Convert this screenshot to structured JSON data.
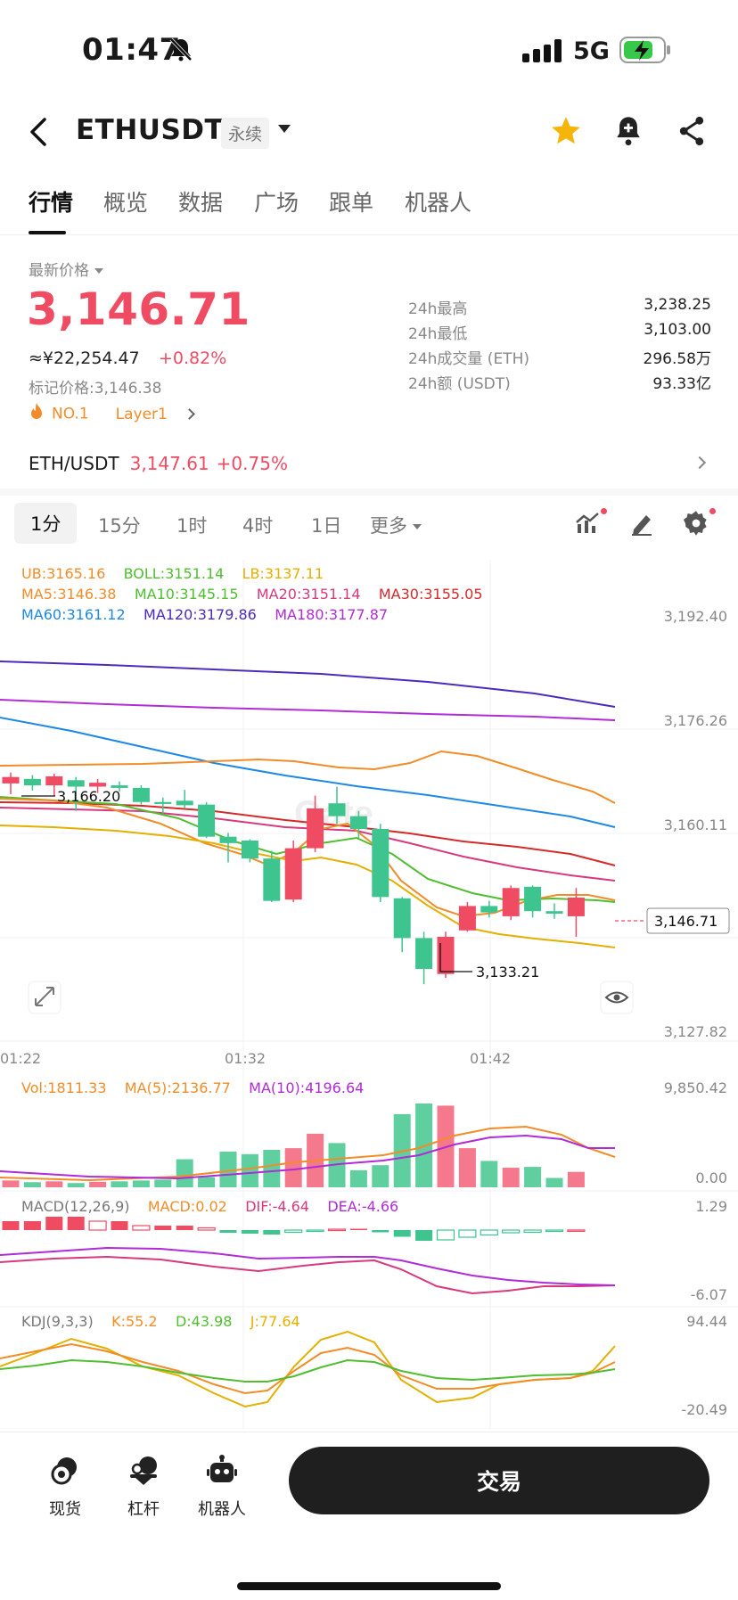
{
  "status_bar": {
    "time": "01:47",
    "network": "5G"
  },
  "header": {
    "pair": "ETHUSDT",
    "type_tag": "永续"
  },
  "tabs": [
    "行情",
    "概览",
    "数据",
    "广场",
    "跟单",
    "机器人"
  ],
  "price": {
    "latest_label": "最新价格",
    "last": "3,146.71",
    "cny": "≈¥22,254.47",
    "change": "+0.82%",
    "mark_label": "标记价格:",
    "mark_value": "3,146.38",
    "rank": "NO.1",
    "sector": "Layer1"
  },
  "stats": [
    {
      "label": "24h最高",
      "value": "3,238.25"
    },
    {
      "label": "24h最低",
      "value": "3,103.00"
    },
    {
      "label": "24h成交量 (ETH)",
      "value": "296.58万"
    },
    {
      "label": "24h额 (USDT)",
      "value": "93.33亿"
    }
  ],
  "spot": {
    "pair": "ETH/USDT",
    "price": "3,147.61",
    "change": "+0.75%"
  },
  "timeframes": [
    "1分",
    "15分",
    "1时",
    "4时",
    "1日",
    "更多"
  ],
  "indicators": {
    "boll": [
      {
        "text": "UB:3165.16",
        "color": "#f28c28"
      },
      {
        "text": "BOLL:3151.14",
        "color": "#4fbf2f"
      },
      {
        "text": "LB:3137.11",
        "color": "#e3b000"
      }
    ],
    "ma_row1": [
      {
        "text": "MA5:3146.38",
        "color": "#f28c28"
      },
      {
        "text": "MA10:3145.15",
        "color": "#4fbf2f"
      },
      {
        "text": "MA20:3151.14",
        "color": "#d8387e"
      },
      {
        "text": "MA30:3155.05",
        "color": "#d62a2a"
      }
    ],
    "ma_row2": [
      {
        "text": "MA60:3161.12",
        "color": "#1e88e5"
      },
      {
        "text": "MA120:3179.86",
        "color": "#4b2bbd"
      },
      {
        "text": "MA180:3177.87",
        "color": "#b12bd6"
      }
    ],
    "vol": [
      {
        "text": "Vol:1811.33",
        "color": "#f28c28"
      },
      {
        "text": "MA(5):2136.77",
        "color": "#f28c28"
      },
      {
        "text": "MA(10):4196.64",
        "color": "#b12bd6"
      }
    ],
    "macd": [
      {
        "text": "MACD(12,26,9)",
        "color": "#777777"
      },
      {
        "text": "MACD:0.02",
        "color": "#f28c28"
      },
      {
        "text": "DIF:-4.64",
        "color": "#d8387e"
      },
      {
        "text": "DEA:-4.66",
        "color": "#b12bd6"
      }
    ],
    "kdj": [
      {
        "text": "KDJ(9,3,3)",
        "color": "#777777"
      },
      {
        "text": "K:55.2",
        "color": "#f28c28"
      },
      {
        "text": "D:43.98",
        "color": "#4fbf2f"
      },
      {
        "text": "J:77.64",
        "color": "#e3b000"
      }
    ]
  },
  "price_axis": [
    "3,192.40",
    "3,176.26",
    "3,160.11",
    "3,127.82"
  ],
  "current_price_tag": "3,146.71",
  "high_marker": "3,166.20",
  "low_marker": "3,133.21",
  "time_axis": [
    "01:22",
    "01:32",
    "01:42"
  ],
  "vol_axis": [
    "9,850.42",
    "0.00"
  ],
  "macd_axis": [
    "1.29",
    "-6.07"
  ],
  "kdj_axis": [
    "94.44",
    "-20.49"
  ],
  "watermark": "Gate",
  "chart_data": {
    "type": "candlestick",
    "up_color": "#ef4b63",
    "down_color": "#3ec48f",
    "candles": [
      {
        "o": 3164.5,
        "c": 3165.5,
        "h": 3166.2,
        "l": 3162.8
      },
      {
        "o": 3165.2,
        "c": 3164.2,
        "h": 3165.8,
        "l": 3163.4
      },
      {
        "o": 3164.2,
        "c": 3165.6,
        "h": 3166.0,
        "l": 3162.5
      },
      {
        "o": 3165.0,
        "c": 3164.0,
        "h": 3165.5,
        "l": 3160.2
      },
      {
        "o": 3164.0,
        "c": 3164.6,
        "h": 3165.2,
        "l": 3163.0
      },
      {
        "o": 3164.2,
        "c": 3163.8,
        "h": 3164.8,
        "l": 3163.2
      },
      {
        "o": 3163.8,
        "c": 3161.6,
        "h": 3164.2,
        "l": 3161.2
      },
      {
        "o": 3161.6,
        "c": 3161.3,
        "h": 3162.3,
        "l": 3159.8
      },
      {
        "o": 3161.8,
        "c": 3161.1,
        "h": 3163.5,
        "l": 3160.7
      },
      {
        "o": 3161.2,
        "c": 3156.2,
        "h": 3161.6,
        "l": 3156.0
      },
      {
        "o": 3156.2,
        "c": 3155.2,
        "h": 3156.8,
        "l": 3152.2
      },
      {
        "o": 3155.6,
        "c": 3152.8,
        "h": 3155.8,
        "l": 3152.2
      },
      {
        "o": 3152.8,
        "c": 3146.2,
        "h": 3154.0,
        "l": 3146.0
      },
      {
        "o": 3146.4,
        "c": 3154.4,
        "h": 3155.6,
        "l": 3146.0
      },
      {
        "o": 3154.4,
        "c": 3160.6,
        "h": 3162.6,
        "l": 3153.8
      },
      {
        "o": 3161.4,
        "c": 3159.4,
        "h": 3164.0,
        "l": 3158.2
      },
      {
        "o": 3159.4,
        "c": 3157.4,
        "h": 3160.2,
        "l": 3156.0
      },
      {
        "o": 3157.4,
        "c": 3146.8,
        "h": 3158.2,
        "l": 3146.0
      },
      {
        "o": 3146.6,
        "c": 3140.4,
        "h": 3146.8,
        "l": 3138.2
      },
      {
        "o": 3140.4,
        "c": 3135.6,
        "h": 3141.4,
        "l": 3133.21
      },
      {
        "o": 3134.8,
        "c": 3140.6,
        "h": 3141.4,
        "l": 3134.2
      },
      {
        "o": 3141.6,
        "c": 3145.4,
        "h": 3146.0,
        "l": 3141.4
      },
      {
        "o": 3145.4,
        "c": 3144.4,
        "h": 3146.2,
        "l": 3143.6
      },
      {
        "o": 3143.8,
        "c": 3148.2,
        "h": 3148.6,
        "l": 3143.2
      },
      {
        "o": 3148.4,
        "c": 3144.6,
        "h": 3148.6,
        "l": 3143.6
      },
      {
        "o": 3144.6,
        "c": 3144.2,
        "h": 3145.8,
        "l": 3143.4
      },
      {
        "o": 3143.8,
        "c": 3146.71,
        "h": 3148.2,
        "l": 3140.6
      }
    ],
    "volumes": [
      800,
      600,
      700,
      500,
      650,
      700,
      800,
      900,
      3300,
      1200,
      4200,
      3900,
      4400,
      4600,
      6300,
      5200,
      2000,
      2600,
      8600,
      9850,
      9600,
      4600,
      3100,
      2300,
      2400,
      1100,
      1811
    ],
    "ylim": [
      3127.82,
      3192.4
    ]
  }
}
